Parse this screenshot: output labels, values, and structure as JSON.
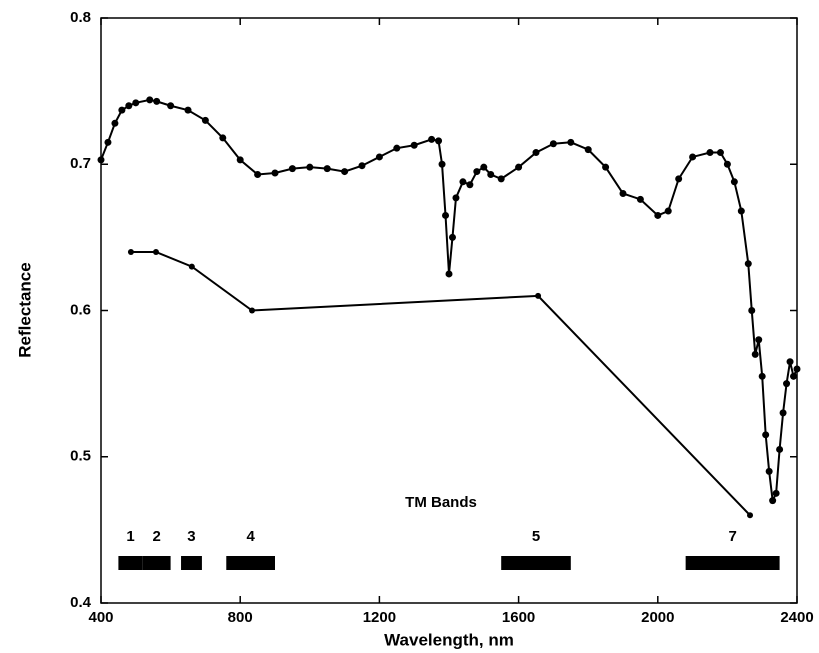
{
  "chart_data": {
    "type": "line",
    "xlabel": "Wavelength, nm",
    "ylabel": "Reflectance",
    "xlim": [
      400,
      2400
    ],
    "ylim": [
      0.4,
      0.8
    ],
    "xticks": [
      400,
      800,
      1200,
      1600,
      2000,
      2400
    ],
    "yticks": [
      0.4,
      0.5,
      0.6,
      0.7,
      0.8
    ],
    "series": [
      {
        "color": "#000000",
        "marker_size": 3.5,
        "x": [
          400,
          420,
          440,
          460,
          480,
          500,
          540,
          560,
          600,
          650,
          700,
          750,
          800,
          850,
          900,
          950,
          1000,
          1050,
          1100,
          1150,
          1200,
          1250,
          1300,
          1350,
          1370,
          1380,
          1390,
          1400,
          1410,
          1420,
          1440,
          1460,
          1480,
          1500,
          1520,
          1550,
          1600,
          1650,
          1700,
          1750,
          1800,
          1850,
          1900,
          1950,
          2000,
          2030,
          2060,
          2100,
          2150,
          2180,
          2200,
          2220,
          2240,
          2260,
          2270,
          2280,
          2290,
          2300,
          2310,
          2320,
          2330,
          2340,
          2350,
          2360,
          2370,
          2380,
          2390,
          2400
        ],
        "values": [
          0.703,
          0.715,
          0.728,
          0.737,
          0.74,
          0.742,
          0.744,
          0.743,
          0.74,
          0.737,
          0.73,
          0.718,
          0.703,
          0.693,
          0.694,
          0.697,
          0.698,
          0.697,
          0.695,
          0.699,
          0.705,
          0.711,
          0.713,
          0.717,
          0.716,
          0.7,
          0.665,
          0.625,
          0.65,
          0.677,
          0.688,
          0.686,
          0.695,
          0.698,
          0.693,
          0.69,
          0.698,
          0.708,
          0.714,
          0.715,
          0.71,
          0.698,
          0.68,
          0.676,
          0.665,
          0.668,
          0.69,
          0.705,
          0.708,
          0.708,
          0.7,
          0.688,
          0.668,
          0.632,
          0.6,
          0.57,
          0.58,
          0.555,
          0.515,
          0.49,
          0.47,
          0.475,
          0.505,
          0.53,
          0.55,
          0.565,
          0.555,
          0.56
        ]
      },
      {
        "color": "#000000",
        "marker_size": 3,
        "x": [
          486,
          558,
          661,
          834,
          1656,
          2265
        ],
        "values": [
          0.64,
          0.64,
          0.63,
          0.6,
          0.61,
          0.46
        ]
      }
    ],
    "bands_title": "TM Bands",
    "bands": [
      {
        "label": "1",
        "start": 450,
        "end": 520
      },
      {
        "label": "2",
        "start": 520,
        "end": 600
      },
      {
        "label": "3",
        "start": 630,
        "end": 690
      },
      {
        "label": "4",
        "start": 760,
        "end": 900
      },
      {
        "label": "5",
        "start": 1550,
        "end": 1750
      },
      {
        "label": "7",
        "start": 2080,
        "end": 2350
      }
    ]
  }
}
